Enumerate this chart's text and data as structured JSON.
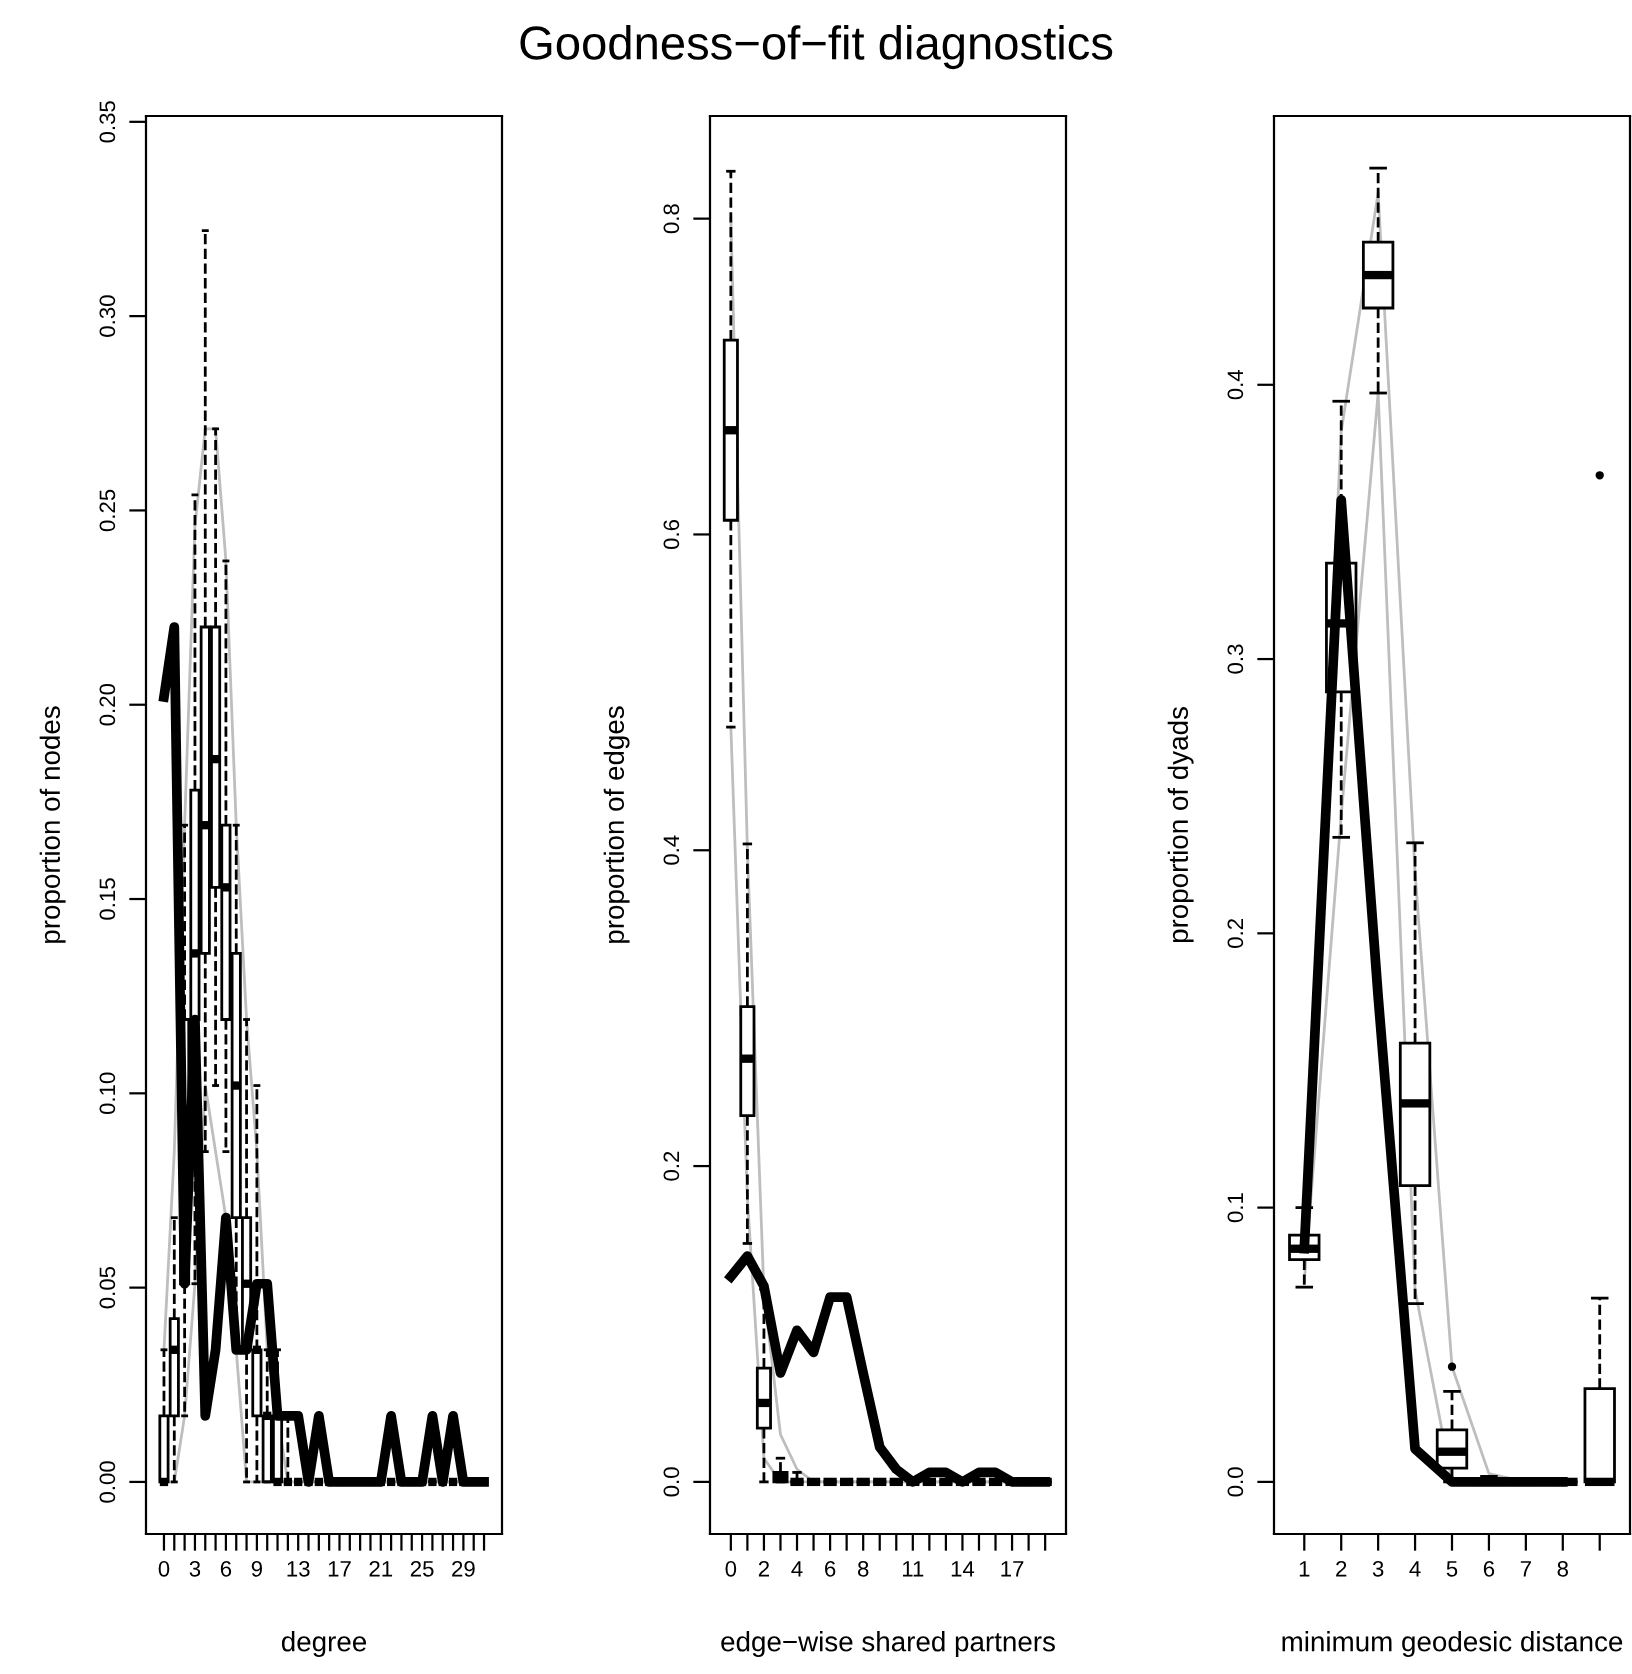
{
  "chart_data": [
    {
      "type": "box",
      "color": "#000000",
      "xlabel": "degree",
      "ylabel": "proportion of nodes",
      "categories": [
        "0",
        null,
        null,
        "3",
        null,
        null,
        "6",
        null,
        null,
        "9",
        null,
        null,
        null,
        "13",
        null,
        null,
        null,
        "17",
        null,
        null,
        null,
        "21",
        null,
        null,
        null,
        "25",
        null,
        null,
        null,
        "29",
        null,
        null
      ],
      "ylim": [
        -0.0134,
        0.3515
      ],
      "yticks": [
        {
          "value": 0,
          "label": "0.00"
        },
        {
          "value": 0.05,
          "label": "0.05"
        },
        {
          "value": 0.1,
          "label": "0.10"
        },
        {
          "value": 0.15,
          "label": "0.15"
        },
        {
          "value": 0.2,
          "label": "0.20"
        },
        {
          "value": 0.25,
          "label": "0.25"
        },
        {
          "value": 0.3,
          "label": "0.30"
        },
        {
          "value": 0.35,
          "label": "0.35"
        }
      ],
      "grid": false,
      "marker": "none",
      "boxes": [
        {
          "low": 0,
          "q1": 0,
          "median": 0,
          "q3": 0.017,
          "high": 0.034
        },
        {
          "low": 0,
          "q1": 0.017,
          "median": 0.034,
          "q3": 0.042,
          "high": 0.068
        },
        {
          "low": 0.017,
          "q1": 0.051,
          "median": 0.085,
          "q3": 0.119,
          "high": 0.169
        },
        {
          "low": 0.051,
          "q1": 0.119,
          "median": 0.136,
          "q3": 0.178,
          "high": 0.254
        },
        {
          "low": 0.085,
          "q1": 0.136,
          "median": 0.169,
          "q3": 0.22,
          "high": 0.322
        },
        {
          "low": 0.102,
          "q1": 0.153,
          "median": 0.186,
          "q3": 0.22,
          "high": 0.271
        },
        {
          "low": 0.085,
          "q1": 0.119,
          "median": 0.153,
          "q3": 0.169,
          "high": 0.237
        },
        {
          "low": 0.034,
          "q1": 0.068,
          "median": 0.102,
          "q3": 0.136,
          "high": 0.169
        },
        {
          "low": 0,
          "q1": 0.034,
          "median": 0.051,
          "q3": 0.068,
          "high": 0.119
        },
        {
          "low": 0,
          "q1": 0.017,
          "median": 0.034,
          "q3": 0.034,
          "high": 0.102
        },
        {
          "low": 0,
          "q1": 0,
          "median": 0.017,
          "q3": 0.017,
          "high": 0.034
        },
        {
          "low": 0,
          "q1": 0,
          "median": 0,
          "q3": 0.017,
          "high": 0.034
        },
        {
          "low": 0,
          "q1": 0,
          "median": 0,
          "q3": 0,
          "high": 0.017
        },
        {
          "low": 0,
          "q1": 0,
          "median": 0,
          "q3": 0,
          "high": 0
        },
        {
          "low": 0,
          "q1": 0,
          "median": 0,
          "q3": 0,
          "high": 0
        },
        {
          "low": 0,
          "q1": 0,
          "median": 0,
          "q3": 0,
          "high": 0
        },
        {
          "low": 0,
          "q1": 0,
          "median": 0,
          "q3": 0,
          "high": 0
        },
        {
          "low": 0,
          "q1": 0,
          "median": 0,
          "q3": 0,
          "high": 0
        },
        {
          "low": 0,
          "q1": 0,
          "median": 0,
          "q3": 0,
          "high": 0
        },
        {
          "low": 0,
          "q1": 0,
          "median": 0,
          "q3": 0,
          "high": 0
        },
        {
          "low": 0,
          "q1": 0,
          "median": 0,
          "q3": 0,
          "high": 0
        },
        {
          "low": 0,
          "q1": 0,
          "median": 0,
          "q3": 0,
          "high": 0
        },
        {
          "low": 0,
          "q1": 0,
          "median": 0,
          "q3": 0,
          "high": 0
        },
        {
          "low": 0,
          "q1": 0,
          "median": 0,
          "q3": 0,
          "high": 0
        },
        {
          "low": 0,
          "q1": 0,
          "median": 0,
          "q3": 0,
          "high": 0
        },
        {
          "low": 0,
          "q1": 0,
          "median": 0,
          "q3": 0,
          "high": 0
        },
        {
          "low": 0,
          "q1": 0,
          "median": 0,
          "q3": 0,
          "high": 0
        },
        {
          "low": 0,
          "q1": 0,
          "median": 0,
          "q3": 0,
          "high": 0
        },
        {
          "low": 0,
          "q1": 0,
          "median": 0,
          "q3": 0,
          "high": 0
        },
        {
          "low": 0,
          "q1": 0,
          "median": 0,
          "q3": 0,
          "high": 0
        },
        {
          "low": 0,
          "q1": 0,
          "median": 0,
          "q3": 0,
          "high": 0
        },
        {
          "low": 0,
          "q1": 0,
          "median": 0,
          "q3": 0,
          "high": 0
        }
      ],
      "series": [
        {
          "type": "line",
          "color": "#bebebe",
          "values": [
            0.034,
            0.085,
            0.169,
            0.246,
            0.271,
            0.271,
            0.237,
            0.169,
            0.119,
            0.085,
            0.034,
            0.017,
            0,
            0,
            0,
            0,
            0,
            0,
            0,
            0,
            0,
            0,
            0,
            0,
            0,
            0,
            0,
            0,
            0,
            0,
            0,
            0
          ]
        },
        {
          "type": "line",
          "color": "#bebebe",
          "values": [
            0,
            0,
            0.017,
            0.051,
            0.102,
            0.085,
            0.068,
            0.034,
            0,
            0,
            0,
            0,
            0,
            0,
            0,
            0,
            0,
            0,
            0,
            0,
            0,
            0,
            0,
            0,
            0,
            0,
            0,
            0,
            0,
            0,
            0,
            0
          ]
        },
        {
          "type": "line",
          "color": "#000000",
          "values": [
            0.202,
            0.22,
            0.051,
            0.119,
            0.017,
            0.034,
            0.068,
            0.034,
            0.034,
            0.051,
            0.051,
            0.017,
            0.017,
            0.017,
            0,
            0.017,
            0,
            0,
            0,
            0,
            0,
            0,
            0.017,
            0,
            0,
            0,
            0.017,
            0,
            0.017,
            0,
            0,
            0
          ]
        }
      ]
    },
    {
      "type": "box",
      "color": "#000000",
      "title": "Goodness−of−fit diagnostics",
      "xlabel": "edge−wise shared partners",
      "ylabel": "proportion of edges",
      "categories": [
        "0",
        null,
        "2",
        null,
        "4",
        null,
        "6",
        null,
        "8",
        null,
        null,
        "11",
        null,
        null,
        "14",
        null,
        null,
        "17",
        null,
        null
      ],
      "ylim": [
        -0.033,
        0.865
      ],
      "yticks": [
        {
          "value": 0,
          "label": "0.0"
        },
        0.2,
        0.4,
        0.6,
        0.8
      ],
      "grid": false,
      "marker": "none",
      "boxes": [
        {
          "low": 0.478,
          "q1": 0.609,
          "median": 0.666,
          "q3": 0.723,
          "high": 0.83
        },
        {
          "low": 0.151,
          "q1": 0.232,
          "median": 0.268,
          "q3": 0.301,
          "high": 0.404
        },
        {
          "low": 0,
          "q1": 0.034,
          "median": 0.05,
          "q3": 0.072,
          "high": 0.122
        },
        {
          "low": 0,
          "q1": 0,
          "median": 0.003,
          "q3": 0.006,
          "high": 0.015
        },
        {
          "low": 0,
          "q1": 0,
          "median": 0,
          "q3": 0,
          "high": 0.006
        },
        {
          "low": 0,
          "q1": 0,
          "median": 0,
          "q3": 0,
          "high": 0
        },
        {
          "low": 0,
          "q1": 0,
          "median": 0,
          "q3": 0,
          "high": 0
        },
        {
          "low": 0,
          "q1": 0,
          "median": 0,
          "q3": 0,
          "high": 0
        },
        {
          "low": 0,
          "q1": 0,
          "median": 0,
          "q3": 0,
          "high": 0
        },
        {
          "low": 0,
          "q1": 0,
          "median": 0,
          "q3": 0,
          "high": 0
        },
        {
          "low": 0,
          "q1": 0,
          "median": 0,
          "q3": 0,
          "high": 0
        },
        {
          "low": 0,
          "q1": 0,
          "median": 0,
          "q3": 0,
          "high": 0
        },
        {
          "low": 0,
          "q1": 0,
          "median": 0,
          "q3": 0,
          "high": 0
        },
        {
          "low": 0,
          "q1": 0,
          "median": 0,
          "q3": 0,
          "high": 0
        },
        {
          "low": 0,
          "q1": 0,
          "median": 0,
          "q3": 0,
          "high": 0
        },
        {
          "low": 0,
          "q1": 0,
          "median": 0,
          "q3": 0,
          "high": 0
        },
        {
          "low": 0,
          "q1": 0,
          "median": 0,
          "q3": 0,
          "high": 0
        },
        {
          "low": 0,
          "q1": 0,
          "median": 0,
          "q3": 0,
          "high": 0
        },
        {
          "low": 0,
          "q1": 0,
          "median": 0,
          "q3": 0,
          "high": 0
        },
        {
          "low": 0,
          "q1": 0,
          "median": 0,
          "q3": 0,
          "high": 0
        }
      ],
      "series": [
        {
          "type": "line",
          "color": "#bebebe",
          "values": [
            0.8,
            0.4,
            0.12,
            0.03,
            0.008,
            0,
            0,
            0,
            0,
            0,
            0,
            0,
            0,
            0,
            0,
            0,
            0,
            0,
            0,
            0
          ]
        },
        {
          "type": "line",
          "color": "#bebebe",
          "values": [
            0.478,
            0.18,
            0.015,
            0,
            0,
            0,
            0,
            0,
            0,
            0,
            0,
            0,
            0,
            0,
            0,
            0,
            0,
            0,
            0,
            0
          ]
        },
        {
          "type": "line",
          "color": "#000000",
          "values": [
            0.13,
            0.143,
            0.124,
            0.069,
            0.096,
            0.082,
            0.117,
            0.117,
            0.069,
            0.022,
            0.008,
            0,
            0.006,
            0.006,
            0,
            0.006,
            0.006,
            0,
            0,
            0
          ]
        }
      ]
    },
    {
      "type": "box",
      "color": "#000000",
      "xlabel": "minimum geodesic distance",
      "ylabel": "proportion of dyads",
      "categories": [
        "1",
        "2",
        "3",
        "4",
        "5",
        "6",
        "7",
        "8",
        null
      ],
      "ylim": [
        -0.019,
        0.498
      ],
      "yticks": [
        {
          "value": 0,
          "label": "0.0"
        },
        0.1,
        0.2,
        0.3,
        0.4
      ],
      "grid": false,
      "marker": "none",
      "boxes": [
        {
          "low": 0.071,
          "q1": 0.081,
          "median": 0.085,
          "q3": 0.09,
          "high": 0.1
        },
        {
          "low": 0.235,
          "q1": 0.288,
          "median": 0.313,
          "q3": 0.335,
          "high": 0.394
        },
        {
          "low": 0.397,
          "q1": 0.428,
          "median": 0.44,
          "q3": 0.452,
          "high": 0.479
        },
        {
          "low": 0.065,
          "q1": 0.108,
          "median": 0.138,
          "q3": 0.16,
          "high": 0.233
        },
        {
          "low": 0,
          "q1": 0.005,
          "median": 0.011,
          "q3": 0.019,
          "high": 0.033,
          "outliers": [
            0.042
          ]
        },
        {
          "low": 0,
          "q1": 0,
          "median": 0,
          "q3": 0,
          "high": 0.002
        },
        {
          "low": 0,
          "q1": 0,
          "median": 0,
          "q3": 0,
          "high": 0
        },
        {
          "low": 0,
          "q1": 0,
          "median": 0,
          "q3": 0,
          "high": 0
        },
        {
          "low": 0,
          "q1": 0,
          "median": 0,
          "q3": 0.034,
          "high": 0.067,
          "outliers": [
            0.367
          ]
        }
      ],
      "series": [
        {
          "type": "line",
          "color": "#bebebe",
          "values": [
            0.1,
            0.383,
            0.47,
            0.222,
            0.042,
            0.003,
            0,
            0,
            null
          ]
        },
        {
          "type": "line",
          "color": "#bebebe",
          "values": [
            0.073,
            0.243,
            0.397,
            0.07,
            0,
            0,
            0,
            0,
            null
          ]
        },
        {
          "type": "line",
          "color": "#000000",
          "values": [
            0.085,
            0.358,
            0.177,
            0.012,
            0,
            0,
            0,
            0,
            null
          ]
        }
      ]
    }
  ]
}
